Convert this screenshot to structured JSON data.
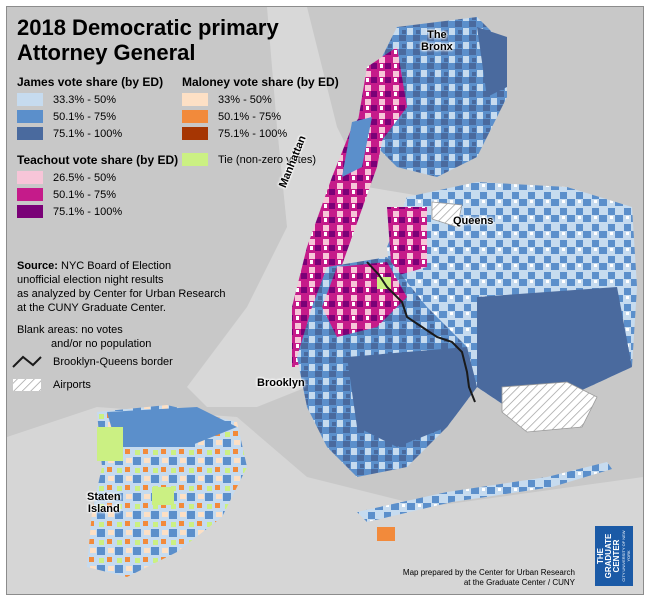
{
  "title_line1": "2018 Democratic primary",
  "title_line2": "Attorney General",
  "legend": {
    "james": {
      "heading": "James vote share (by ED)",
      "items": [
        {
          "label": "33.3% - 50%",
          "color": "#c6dbef"
        },
        {
          "label": "50.1% - 75%",
          "color": "#5b8fcb"
        },
        {
          "label": "75.1% - 100%",
          "color": "#4a6a9e"
        }
      ]
    },
    "maloney": {
      "heading": "Maloney vote share (by ED)",
      "items": [
        {
          "label": "33% - 50%",
          "color": "#fde0c5"
        },
        {
          "label": "50.1% - 75%",
          "color": "#f28a3b"
        },
        {
          "label": "75.1% - 100%",
          "color": "#a63603"
        }
      ]
    },
    "teachout": {
      "heading": "Teachout vote share (by ED)",
      "items": [
        {
          "label": "26.5% - 50%",
          "color": "#f7c5d8"
        },
        {
          "label": "50.1% - 75%",
          "color": "#c51b8a"
        },
        {
          "label": "75.1% - 100%",
          "color": "#7a0177"
        }
      ]
    },
    "tie": {
      "label": "Tie (non-zero votes)",
      "color": "#cbf083"
    },
    "border_label": "Brooklyn-Queens border",
    "airports_label": "Airports"
  },
  "source": {
    "bold": "Source:",
    "line1": " NYC Board of Election",
    "line2": "unofficial election night results",
    "line3": "as analyzed by Center for Urban Research",
    "line4": "at the CUNY Graduate Center."
  },
  "blank_note": {
    "line1": "Blank areas: no votes",
    "line2": "and/or no population"
  },
  "places": {
    "bronx_line1": "The",
    "bronx_line2": "Bronx",
    "manhattan": "Manhattan",
    "queens": "Queens",
    "brooklyn": "Brooklyn",
    "staten_line1": "Staten",
    "staten_line2": "Island"
  },
  "credit": {
    "line1": "Map prepared by the Center for Urban Research",
    "line2": "at the Graduate Center / CUNY"
  },
  "logo": {
    "line1": "THE",
    "line2": "GRADUATE",
    "line3": "CENTER",
    "line4": "CITY UNIVERSITY OF NEW YORK"
  }
}
